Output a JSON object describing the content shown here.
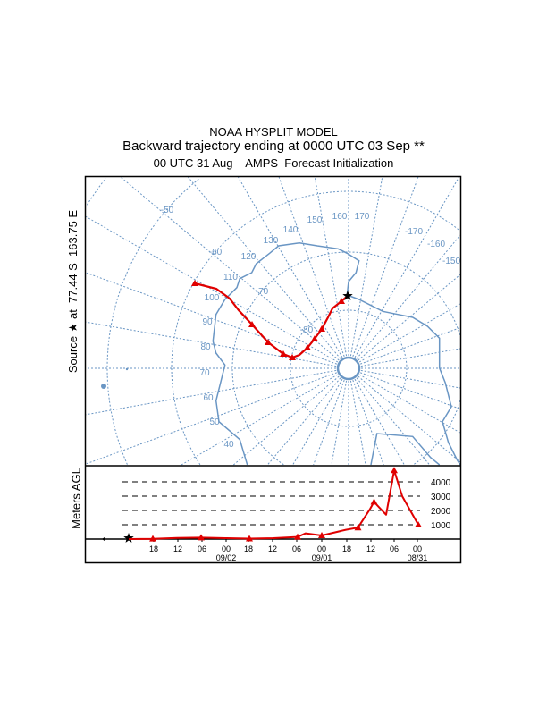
{
  "header": {
    "model": "NOAA HYSPLIT MODEL",
    "title": "Backward trajectory ending at 0000 UTC 03 Sep **",
    "subtitle": "00 UTC 31 Aug    AMPS  Forecast Initialization"
  },
  "source_label": "Source ★ at  77.44 S  163.75 E",
  "map": {
    "projection": "polar stereographic (south)",
    "colors": {
      "grid": "#6a96c4",
      "coast": "#6a96c4",
      "trajectory": "#e00000",
      "source": "#000000"
    },
    "longitude_labels": [
      "170",
      "160",
      "150",
      "140",
      "130",
      "120",
      "110",
      "100",
      "90",
      "80",
      "70",
      "60",
      "50",
      "40",
      "-170",
      "-160",
      "-150"
    ],
    "latitude_labels": [
      "-50",
      "-60",
      "-70",
      "-80"
    ],
    "source_marker": "star-icon",
    "trajectory_marker": "triangle"
  },
  "height_panel": {
    "ylabel": "Meters AGL",
    "y_tick_labels": [
      "1000",
      "2000",
      "3000",
      "4000"
    ],
    "x_tick_labels": [
      "18",
      "12",
      "06",
      "00",
      "18",
      "12",
      "06",
      "00",
      "18",
      "12",
      "06",
      "00"
    ],
    "date_labels": [
      "09/02",
      "09/01",
      "08/31"
    ]
  },
  "chart_data": {
    "type": "line",
    "ylabel": "Meters AGL",
    "yticks": [
      1000,
      2000,
      3000,
      4000
    ],
    "grid": "dashed horizontal at ticks",
    "series": [
      {
        "color": "#e00000",
        "points": [
          [
            "09/03 00",
            0
          ],
          [
            "09/02 18",
            20
          ],
          [
            "09/02 12",
            80
          ],
          [
            "09/02 06",
            100
          ],
          [
            "09/02 00",
            60
          ],
          [
            "09/01 18",
            30
          ],
          [
            "09/01 12",
            60
          ],
          [
            "09/01 06",
            150
          ],
          [
            "09/01 04",
            400
          ],
          [
            "09/01 00",
            250
          ],
          [
            "08/31 18",
            650
          ],
          [
            "08/31 15",
            800
          ],
          [
            "08/31 12",
            2100
          ],
          [
            "08/31 11",
            2600
          ],
          [
            "08/31 08",
            1700
          ],
          [
            "08/31 06",
            4800
          ],
          [
            "08/31 04",
            3000
          ],
          [
            "08/31 00",
            1000
          ]
        ]
      }
    ]
  }
}
